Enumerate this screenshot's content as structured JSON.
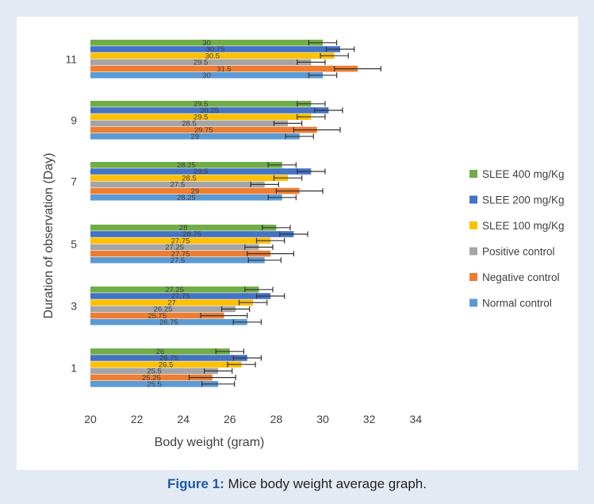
{
  "caption": {
    "label": "Figure 1:",
    "text": " Mice body weight average graph."
  },
  "chart_data": {
    "type": "bar",
    "orientation": "horizontal",
    "xlabel": "Body weight (gram)",
    "ylabel": "Duration of observation (Day)",
    "xlim": [
      20,
      34
    ],
    "xticks": [
      20,
      22,
      24,
      26,
      28,
      30,
      32,
      34
    ],
    "categories": [
      "1",
      "3",
      "5",
      "7",
      "9",
      "11"
    ],
    "legend_position": "right",
    "grid": false,
    "error_bars": true,
    "series": [
      {
        "name": "Normal control",
        "color": "#5b9bd5",
        "values": [
          25.5,
          26.75,
          27.5,
          28.25,
          29,
          30
        ],
        "errors": [
          0.7,
          0.6,
          0.7,
          0.6,
          0.6,
          0.6
        ]
      },
      {
        "name": "Negative control",
        "color": "#ed7d31",
        "values": [
          25.25,
          25.75,
          27.75,
          29,
          29.75,
          31.5
        ],
        "errors": [
          1.0,
          1.0,
          1.0,
          1.0,
          1.0,
          1.0
        ]
      },
      {
        "name": "Positive control",
        "color": "#a5a5a5",
        "values": [
          25.5,
          26.25,
          27.25,
          27.5,
          28.5,
          29.5
        ],
        "errors": [
          0.6,
          0.6,
          0.6,
          0.6,
          0.6,
          0.6
        ]
      },
      {
        "name": "SLEE 100 mg/Kg",
        "color": "#ffc000",
        "values": [
          26.5,
          27,
          27.75,
          28.5,
          29.5,
          30.5
        ],
        "errors": [
          0.6,
          0.6,
          0.6,
          0.6,
          0.6,
          0.6
        ]
      },
      {
        "name": "SLEE 200 mg/Kg",
        "color": "#4472c4",
        "values": [
          26.75,
          27.75,
          28.75,
          29.5,
          30.25,
          30.75
        ],
        "errors": [
          0.6,
          0.6,
          0.6,
          0.6,
          0.6,
          0.6
        ]
      },
      {
        "name": "SLEE 400 mg/Kg",
        "color": "#70ad47",
        "values": [
          26,
          27.25,
          28,
          28.25,
          29.5,
          30
        ],
        "errors": [
          0.6,
          0.6,
          0.6,
          0.6,
          0.6,
          0.6
        ]
      }
    ],
    "labels": [
      [
        "25.5",
        "26.75",
        "27.5",
        "28.25",
        "29",
        "30"
      ],
      [
        "25.25",
        "25.75",
        "27.75",
        "29",
        "29.75",
        "31.5"
      ],
      [
        "25.5",
        "26.25",
        "27.25",
        "27.5",
        "28.5",
        "29.5"
      ],
      [
        "26.5",
        "27",
        "27.75",
        "28.5",
        "29.5",
        "30.5"
      ],
      [
        "26.75",
        "27.75",
        "28.75",
        "29.5",
        "30.25",
        "30.75"
      ],
      [
        "26",
        "27.25",
        "28",
        "28.25",
        "29.5",
        "30"
      ]
    ]
  }
}
